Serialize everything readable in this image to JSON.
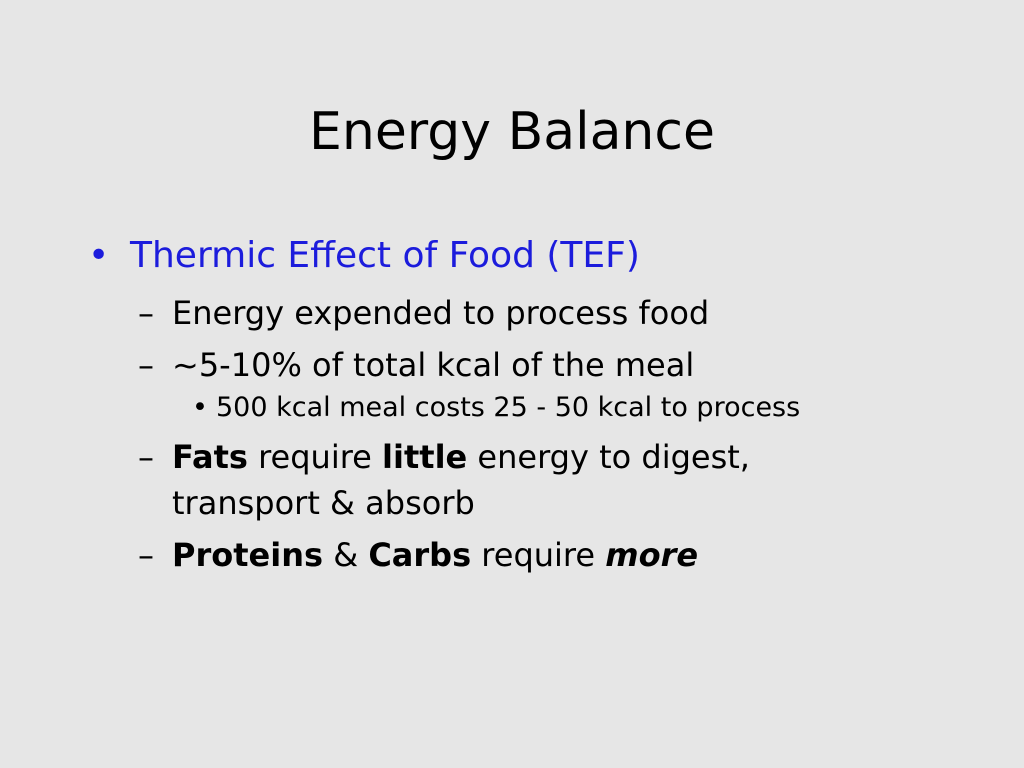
{
  "slide": {
    "title": "Energy Balance",
    "items": [
      {
        "level": 1,
        "color": "#1c1cdc",
        "runs": [
          {
            "text": "Thermic Effect of Food (TEF)"
          }
        ]
      },
      {
        "level": 2,
        "runs": [
          {
            "text": "Energy expended to process food"
          }
        ]
      },
      {
        "level": 2,
        "runs": [
          {
            "text": "~5-10% of total kcal of the meal"
          }
        ]
      },
      {
        "level": 3,
        "runs": [
          {
            "text": "500 kcal meal costs 25 - 50 kcal to process"
          }
        ]
      },
      {
        "level": 2,
        "runs": [
          {
            "text": "Fats",
            "bold": true
          },
          {
            "text": " require "
          },
          {
            "text": "little",
            "bold": true
          },
          {
            "text": " energy to digest, transport & absorb"
          }
        ]
      },
      {
        "level": 2,
        "runs": [
          {
            "text": "Proteins",
            "bold": true
          },
          {
            "text": " & "
          },
          {
            "text": "Carbs",
            "bold": true
          },
          {
            "text": " require "
          },
          {
            "text": "more",
            "bold": true,
            "italic": true
          }
        ]
      }
    ]
  }
}
